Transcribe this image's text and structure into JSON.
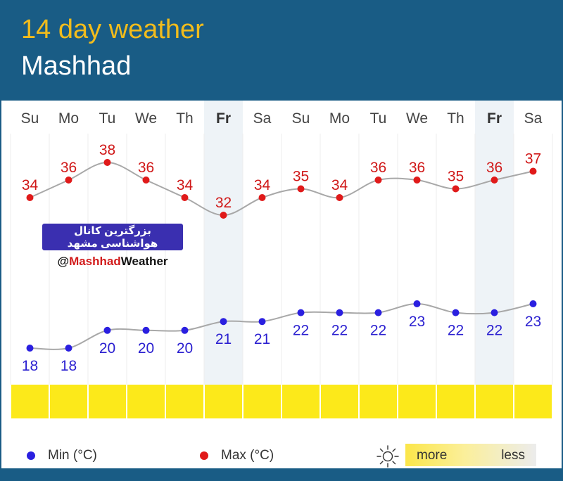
{
  "header": {
    "title": "14 day weather",
    "location": "Mashhad"
  },
  "watermark": {
    "channel_text": "بزرگترین کانال هواشناسی مشهد",
    "handle_prefix": "@",
    "handle_red": "Mashhad",
    "handle_dark": "Weather"
  },
  "legend": {
    "min_label": "Min (°C)",
    "max_label": "Max (°C)",
    "sun_more": "more",
    "sun_less": "less"
  },
  "colors": {
    "min": "#2a1fe0",
    "max": "#e01a1a",
    "line": "#a8a8a8",
    "weekend_highlight": "#eef3f7",
    "sunshine": "#fce91a",
    "title": "#f2bc1c",
    "header_bg": "#195c85"
  },
  "chart_data": {
    "type": "line",
    "categories": [
      "Su",
      "Mo",
      "Tu",
      "We",
      "Th",
      "Fr",
      "Sa",
      "Su",
      "Mo",
      "Tu",
      "We",
      "Th",
      "Fr",
      "Sa"
    ],
    "highlighted_days": [
      5,
      12
    ],
    "series": [
      {
        "name": "Max (°C)",
        "values": [
          34,
          36,
          38,
          36,
          34,
          32,
          34,
          35,
          34,
          36,
          36,
          35,
          36,
          37
        ]
      },
      {
        "name": "Min (°C)",
        "values": [
          18,
          18,
          20,
          20,
          20,
          21,
          21,
          22,
          22,
          22,
          23,
          22,
          22,
          23
        ]
      }
    ],
    "sunshine": [
      1,
      1,
      1,
      1,
      1,
      1,
      1,
      1,
      1,
      1,
      1,
      1,
      1,
      1
    ],
    "grid": "vertical",
    "legend": "bottom"
  }
}
